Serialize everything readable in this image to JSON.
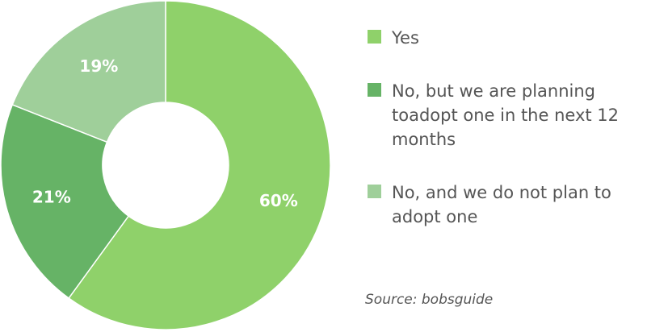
{
  "chart_data": {
    "type": "donut",
    "categories": [
      "Yes",
      "No, but we are planning toadopt one in the next 12 months",
      "No, and we do not plan to adopt one"
    ],
    "values": [
      60,
      21,
      19
    ],
    "value_labels": [
      "60%",
      "21%",
      "19%"
    ],
    "colors": [
      "#8fd16a",
      "#66b366",
      "#9fcf9a"
    ],
    "source": "Source: bobsguide"
  }
}
